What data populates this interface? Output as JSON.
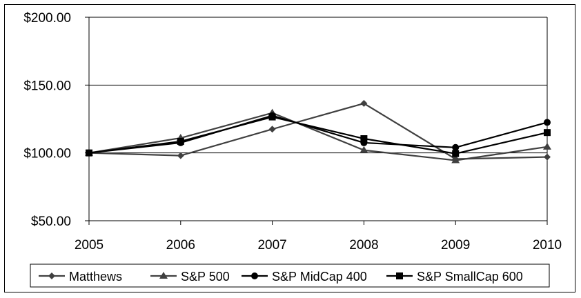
{
  "chart_data": {
    "type": "line",
    "title": "",
    "xlabel": "",
    "ylabel": "",
    "categories": [
      "2005",
      "2006",
      "2007",
      "2008",
      "2009",
      "2010"
    ],
    "y_tick_labels": [
      "$200.00",
      "$150.00",
      "$100.00",
      "$50.00"
    ],
    "y_tick_values": [
      200,
      150,
      100,
      50
    ],
    "ylim": [
      50,
      200
    ],
    "grid": "horizontal",
    "legend_position": "bottom",
    "series": [
      {
        "name": "Matthews",
        "values": [
          100,
          98,
          117.5,
          136.5,
          95.5,
          97
        ],
        "marker": "diamond",
        "color": "#404040"
      },
      {
        "name": "S&P 500",
        "values": [
          100,
          111,
          129.5,
          102,
          94.5,
          104.5
        ],
        "marker": "triangle",
        "color": "#404040"
      },
      {
        "name": "S&P MidCap 400",
        "values": [
          100,
          107.5,
          127.5,
          107.5,
          104,
          122.5
        ],
        "marker": "circle",
        "color": "#000000"
      },
      {
        "name": "S&P SmallCap 600",
        "values": [
          100,
          108.5,
          126.5,
          110.5,
          99.5,
          115
        ],
        "marker": "square",
        "color": "#000000"
      }
    ]
  }
}
